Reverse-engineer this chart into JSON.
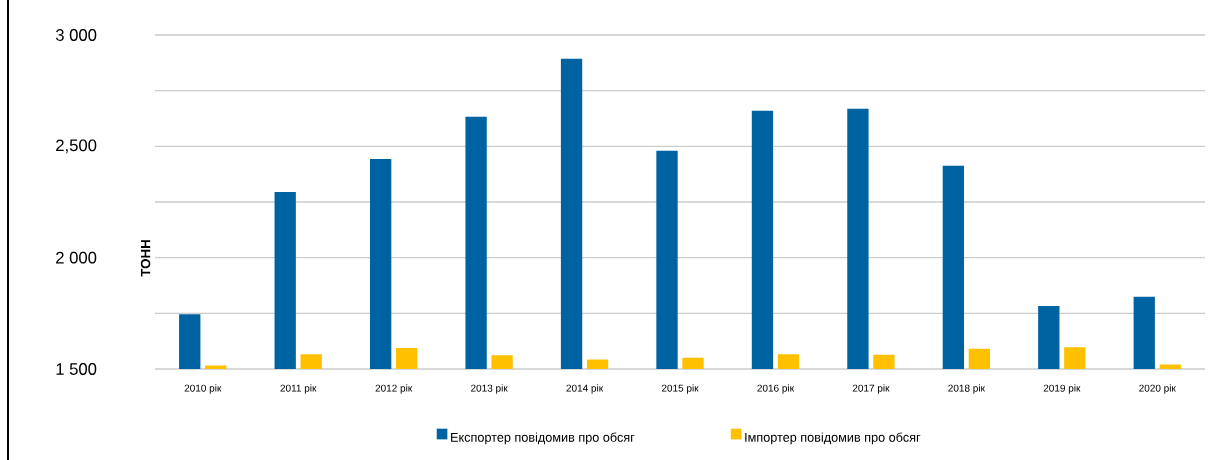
{
  "chart_data": {
    "type": "bar",
    "ylabel": "ТОНН",
    "categories": [
      "2010 рік",
      "2011 рік",
      "2012 рік",
      "2013 рік",
      "2014 рік",
      "2015 рік",
      "2016 рік",
      "2017 рік",
      "2018 рік",
      "2019 рік",
      "2020 рік"
    ],
    "series": [
      {
        "name": "Експортер повідомив про обсяг",
        "color": "#0063a1",
        "values": [
          1746,
          2295,
          2443,
          2633,
          2893,
          2480,
          2660,
          2669,
          2413,
          1783,
          1824
        ]
      },
      {
        "name": "Імпортер повідомив про обсяг",
        "color": "#ffc000",
        "values": [
          1516,
          1566,
          1594,
          1562,
          1543,
          1550,
          1566,
          1564,
          1591,
          1598,
          1520
        ]
      }
    ],
    "ylim": [
      1500,
      3000
    ],
    "yticks": [
      {
        "value": 1500,
        "label": "1 500"
      },
      {
        "value": 1750,
        "label": null
      },
      {
        "value": 2000,
        "label": "2 000"
      },
      {
        "value": 2250,
        "label": null
      },
      {
        "value": 2500,
        "label": "2,500"
      },
      {
        "value": 2750,
        "label": null
      },
      {
        "value": 3000,
        "label": "3 000"
      }
    ],
    "grid": "y",
    "legend": "bottom"
  }
}
